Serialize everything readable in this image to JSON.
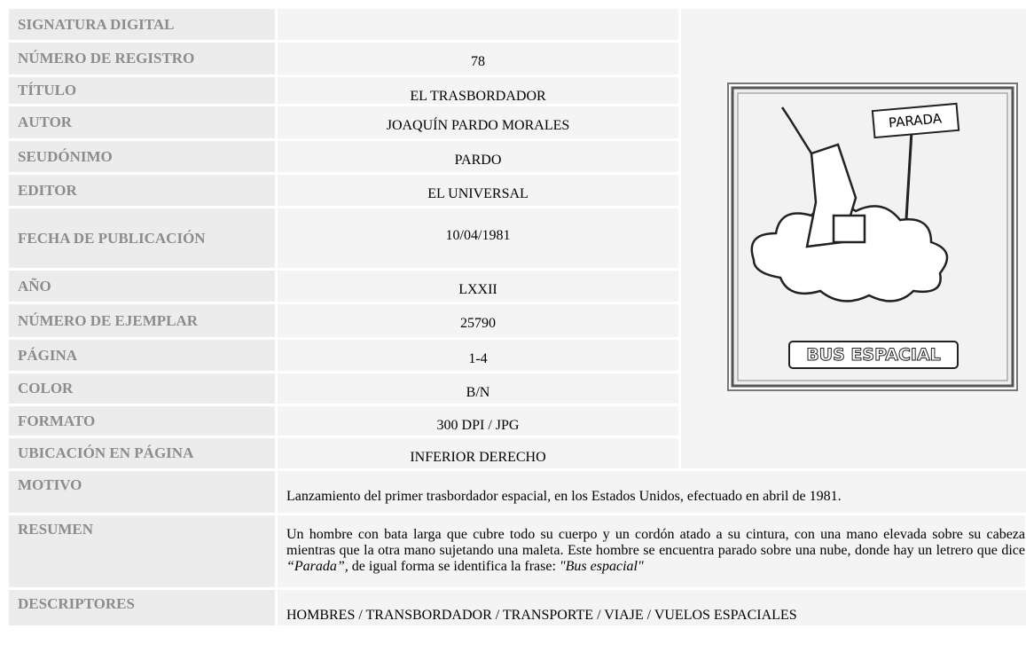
{
  "rows": [
    {
      "label": "SIGNATURA DIGITAL"
    },
    {
      "label": "NÚMERO DE REGISTRO",
      "value": "78"
    },
    {
      "label": "TÍTULO",
      "value": "EL TRASBORDADOR"
    },
    {
      "label": "AUTOR",
      "value": "JOAQUÍN PARDO MORALES"
    },
    {
      "label": "SEUDÓNIMO",
      "value": "PARDO"
    },
    {
      "label": "EDITOR",
      "value": "EL UNIVERSAL"
    },
    {
      "label": "FECHA DE PUBLICACIÓN",
      "value": "10/04/1981"
    },
    {
      "label": "AÑO",
      "value": "LXXII"
    },
    {
      "label": "NÚMERO DE EJEMPLAR",
      "value": "25790"
    },
    {
      "label": "PÁGINA",
      "value": "1-4"
    },
    {
      "label": "COLOR",
      "value": "B/N"
    },
    {
      "label": "FORMATO",
      "value": "300 DPI / JPG"
    },
    {
      "label": "UBICACIÓN EN PÁGINA",
      "value": "INFERIOR DERECHO"
    }
  ],
  "motivo": {
    "label": "MOTIVO",
    "text": "Lanzamiento del primer trasbordador espacial, en los Estados Unidos, efectuado en abril de 1981."
  },
  "resumen": {
    "label": "RESUMEN",
    "parts": [
      "Un hombre con bata larga que cubre todo su cuerpo y un cordón atado a su cintura, con una mano elevada sobre su cabeza mientras que la otra mano sujetando una maleta. Este hombre se encuentra parado sobre una nube, donde hay un letrero que dice ",
      "“Parada”,",
      " de igual forma se identifica la frase: ",
      "\"Bus espacial\""
    ]
  },
  "descriptores": {
    "label": "DESCRIPTORES",
    "text": "HOMBRES / TRANSBORDADOR / TRANSPORTE / VIAJE / VUELOS ESPACIALES"
  },
  "image": {
    "sign": "PARADA",
    "caption": "BUS ESPACIAL"
  }
}
